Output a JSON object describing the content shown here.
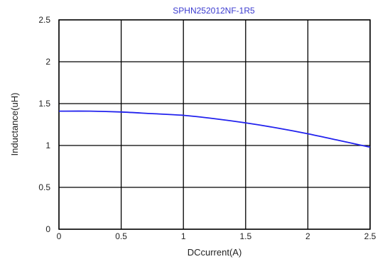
{
  "chart_data": {
    "type": "line",
    "title": "SPHN252012NF-1R5",
    "xlabel": "DCcurrent(A)",
    "ylabel": "Inductance(uH)",
    "xlim": [
      0,
      2.5
    ],
    "ylim": [
      0,
      2.5
    ],
    "grid": true,
    "x_ticks": [
      "0",
      "0.5",
      "1",
      "1.5",
      "2",
      "2.5"
    ],
    "y_ticks": [
      "0",
      "0.5",
      "1",
      "1.5",
      "2",
      "2.5"
    ],
    "series": [
      {
        "color": "#2222ee",
        "x": [
          0,
          0.25,
          0.5,
          0.75,
          1.0,
          1.25,
          1.5,
          1.75,
          2.0,
          2.25,
          2.5
        ],
        "y": [
          1.41,
          1.41,
          1.4,
          1.38,
          1.36,
          1.32,
          1.27,
          1.21,
          1.14,
          1.06,
          0.98
        ]
      }
    ]
  }
}
